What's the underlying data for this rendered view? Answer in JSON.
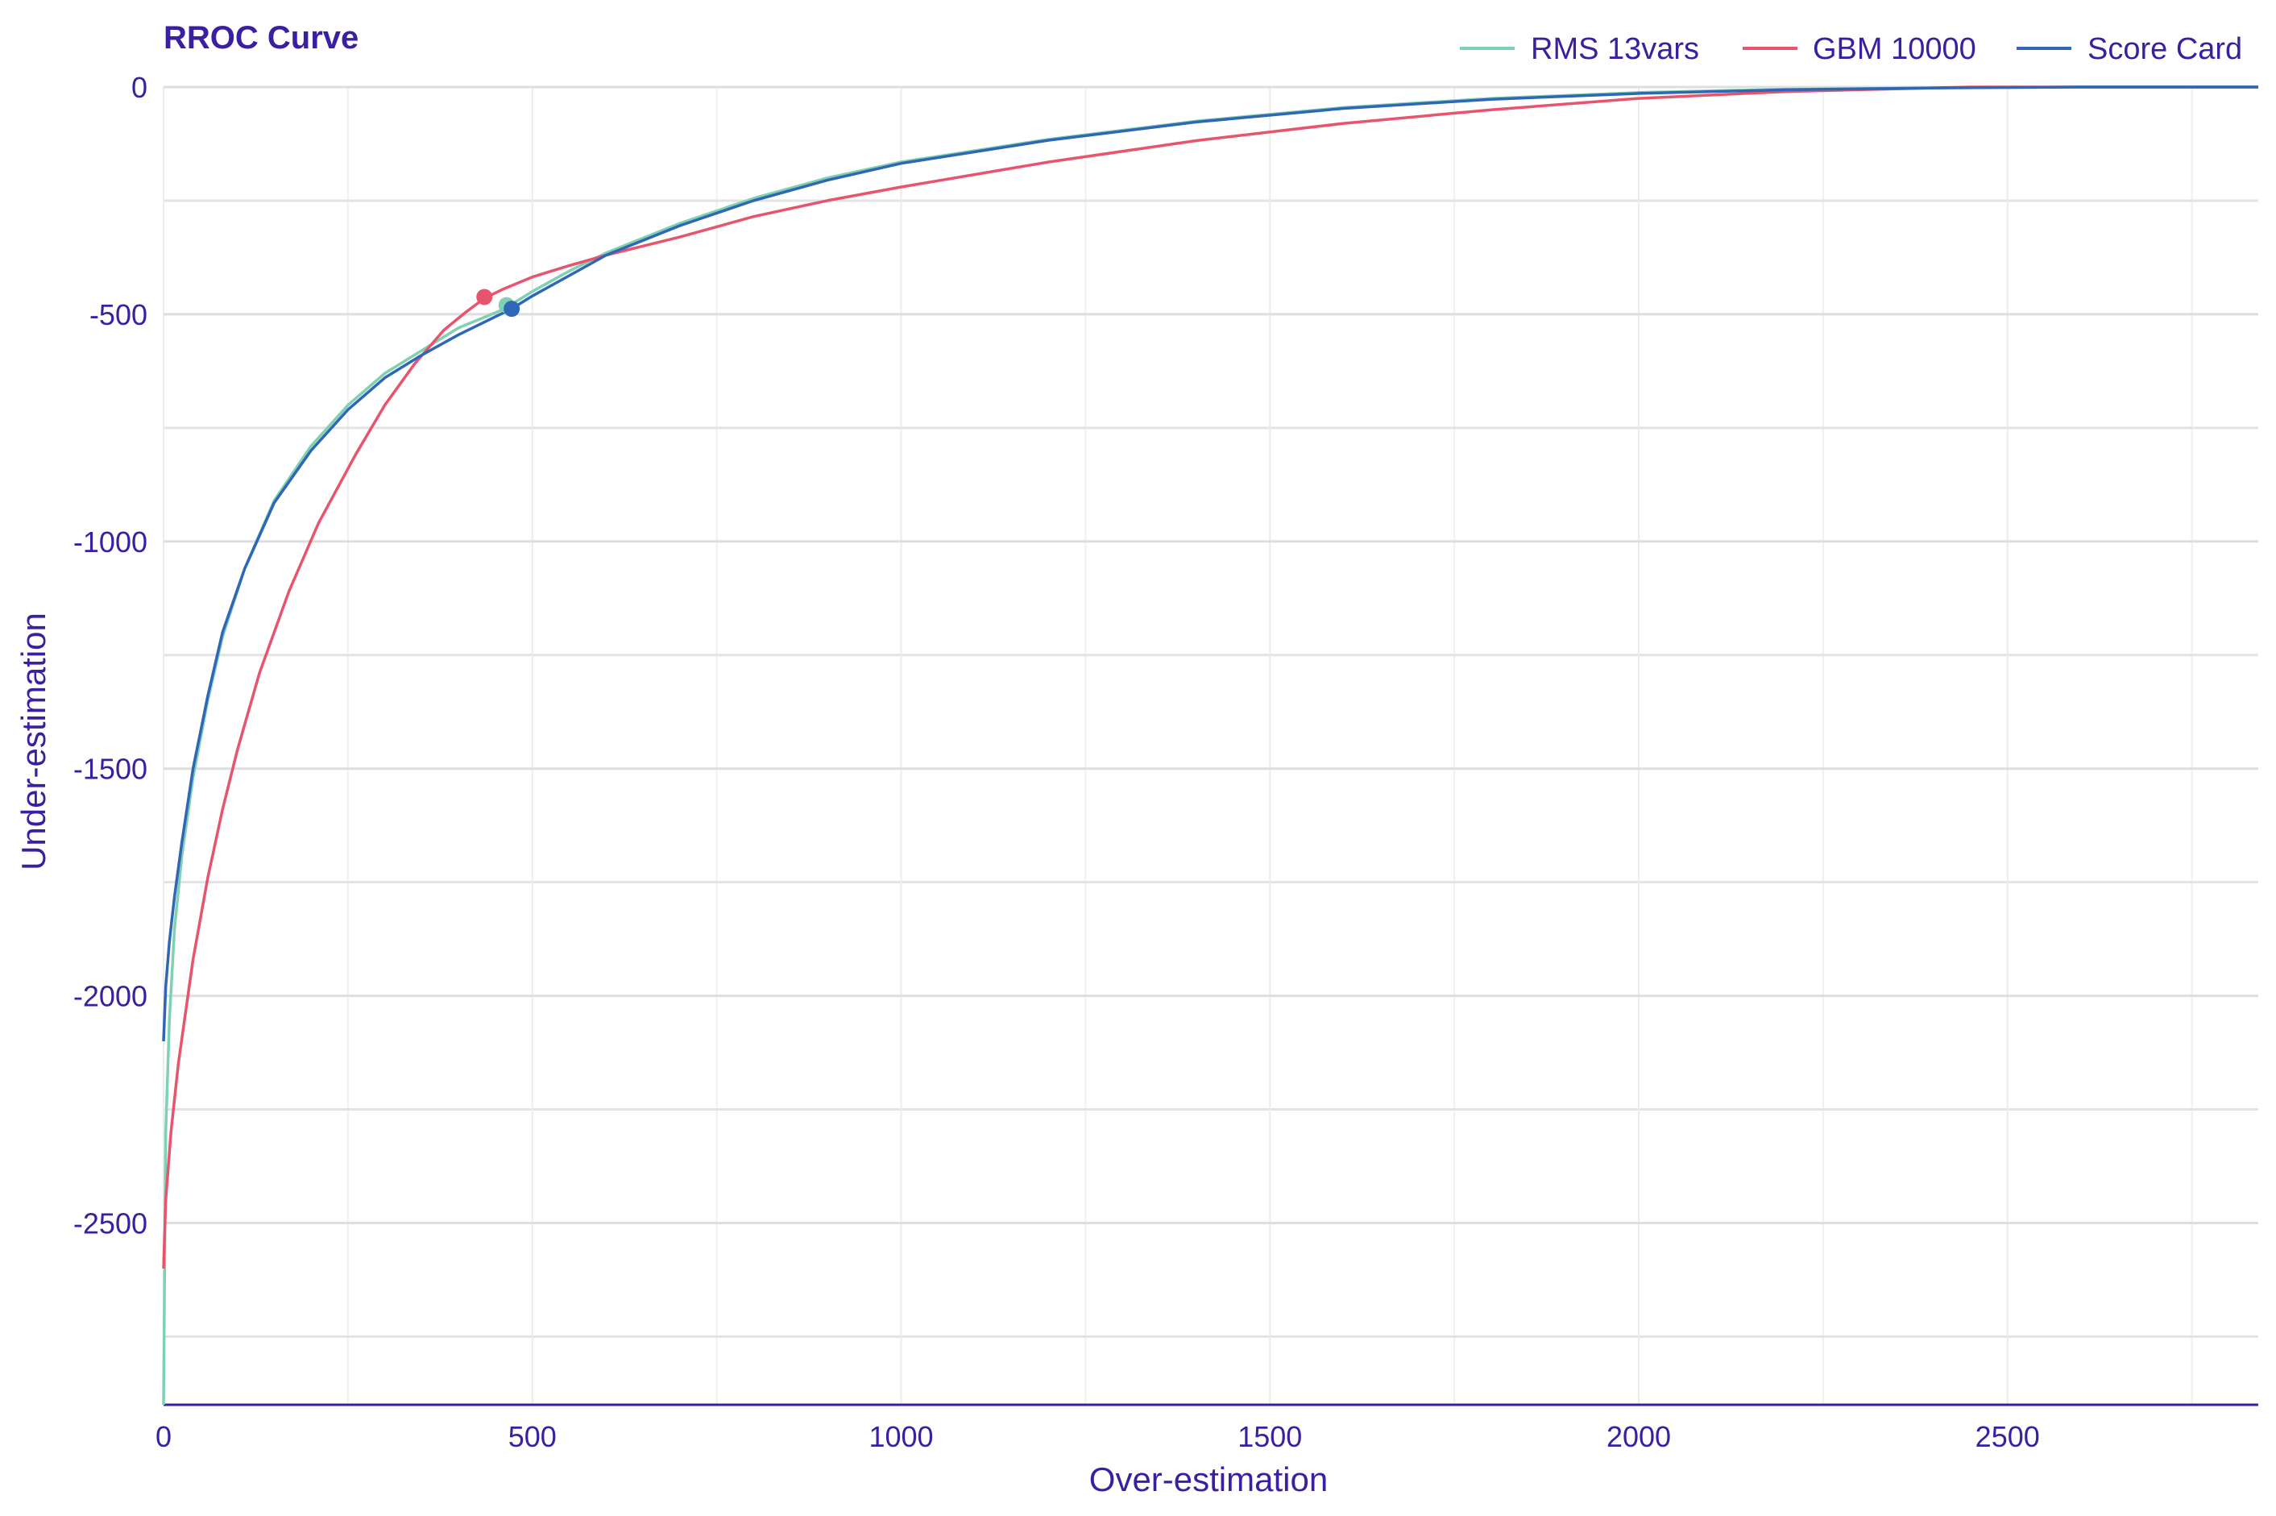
{
  "chart_data": {
    "type": "line",
    "title": "RROC Curve",
    "xlabel": "Over-estimation",
    "ylabel": "Under-estimation",
    "xlim": [
      0,
      2840
    ],
    "ylim": [
      -2900,
      0
    ],
    "x_ticks": [
      0,
      500,
      1000,
      1500,
      2000,
      2500
    ],
    "x_tick_labels": [
      "0",
      "500",
      "1000",
      "1500",
      "2000",
      "2500"
    ],
    "y_ticks": [
      0,
      -500,
      -1000,
      -1500,
      -2000,
      -2500
    ],
    "y_tick_labels": [
      "0",
      "-500",
      "-1000",
      "-1500",
      "-2000",
      "-2500"
    ],
    "grid": true,
    "legend_position": "top-right",
    "text_color": "#3a1fa0",
    "series": [
      {
        "name": "RMS 13vars",
        "color": "#7fd1b4",
        "x": [
          0,
          3,
          8,
          15,
          25,
          40,
          60,
          80,
          110,
          150,
          200,
          250,
          300,
          350,
          400,
          460,
          500,
          550,
          600,
          700,
          800,
          900,
          1000,
          1200,
          1400,
          1600,
          1800,
          2000,
          2200,
          2400,
          2600,
          2840
        ],
        "y": [
          -2900,
          -2300,
          -2050,
          -1850,
          -1690,
          -1520,
          -1350,
          -1210,
          -1060,
          -910,
          -790,
          -700,
          -630,
          -580,
          -530,
          -490,
          -450,
          -405,
          -365,
          -300,
          -245,
          -200,
          -165,
          -115,
          -75,
          -45,
          -25,
          -12,
          -5,
          -2,
          0,
          0
        ],
        "optimal_point": {
          "x": 465,
          "y": -480
        }
      },
      {
        "name": "GBM 10000",
        "color": "#e8546e",
        "x": [
          0,
          3,
          10,
          20,
          40,
          60,
          80,
          100,
          130,
          170,
          210,
          260,
          300,
          340,
          380,
          410,
          435,
          460,
          500,
          550,
          600,
          700,
          800,
          900,
          1000,
          1200,
          1400,
          1600,
          1800,
          2000,
          2200,
          2450,
          2840
        ],
        "y": [
          -2600,
          -2450,
          -2300,
          -2150,
          -1920,
          -1740,
          -1590,
          -1460,
          -1290,
          -1110,
          -960,
          -810,
          -700,
          -610,
          -535,
          -495,
          -465,
          -445,
          -418,
          -393,
          -370,
          -330,
          -285,
          -250,
          -220,
          -165,
          -118,
          -80,
          -50,
          -25,
          -10,
          0,
          0
        ],
        "optimal_point": {
          "x": 435,
          "y": -462
        }
      },
      {
        "name": "Score Card",
        "color": "#2f66b5",
        "x": [
          0,
          3,
          8,
          15,
          25,
          40,
          60,
          80,
          110,
          150,
          200,
          250,
          300,
          350,
          400,
          472,
          500,
          550,
          600,
          700,
          800,
          900,
          1000,
          1200,
          1400,
          1600,
          1800,
          2000,
          2200,
          2400,
          2600,
          2840
        ],
        "y": [
          -2100,
          -1980,
          -1880,
          -1780,
          -1660,
          -1500,
          -1340,
          -1200,
          -1060,
          -915,
          -800,
          -710,
          -640,
          -590,
          -545,
          -488,
          -460,
          -415,
          -370,
          -305,
          -250,
          -205,
          -168,
          -117,
          -77,
          -47,
          -27,
          -14,
          -6,
          -2,
          0,
          0
        ],
        "optimal_point": {
          "x": 472,
          "y": -488
        }
      }
    ]
  }
}
